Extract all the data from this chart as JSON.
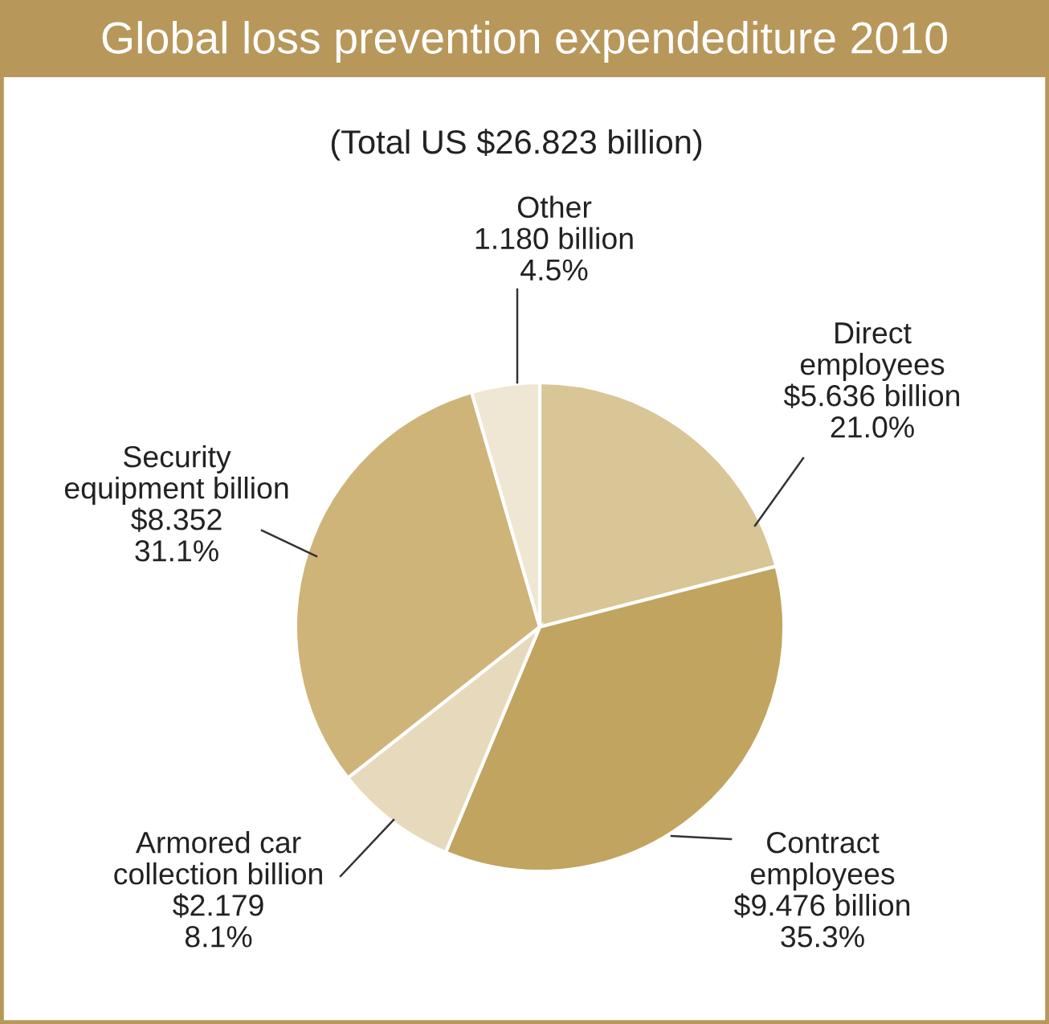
{
  "chart_data": {
    "type": "pie",
    "title": "Global loss prevention expendediture 2010",
    "subtitle": "(Total US $26.823 billion)",
    "categories": [
      "Direct\nemployees",
      "Contract\nemployees",
      "Armored car\ncollection billion",
      "Security\nequipment billion",
      "Other"
    ],
    "values": [
      21.0,
      35.3,
      8.1,
      31.1,
      4.5
    ],
    "value_labels": [
      "$5.636 billion\n21.0%",
      "$9.476 billion\n35.3%",
      "$2.179\n8.1%",
      "$8.352\n31.1%",
      "1.180 billion\n4.5%"
    ],
    "colors": [
      "#d9c696",
      "#c1a45f",
      "#e7dabc",
      "#cfb479",
      "#efe6d3"
    ]
  }
}
